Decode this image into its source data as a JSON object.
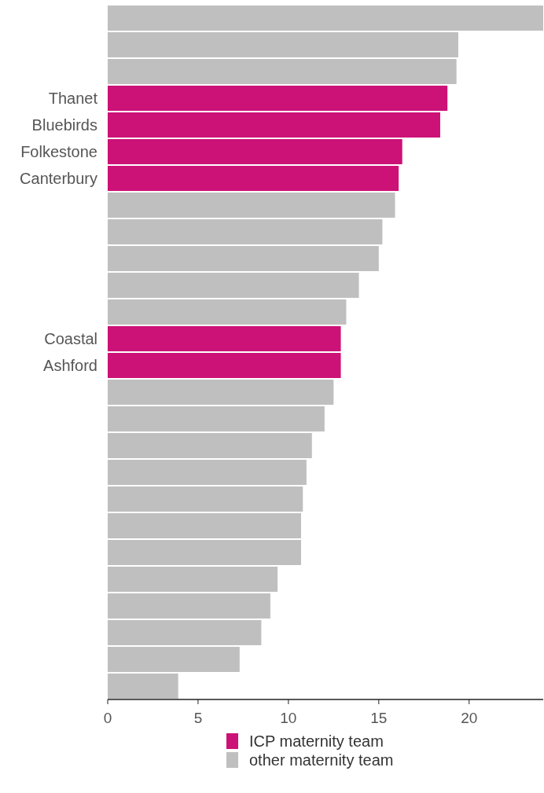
{
  "chart_data": {
    "type": "bar",
    "orientation": "horizontal",
    "categories": [
      null,
      null,
      null,
      "Thanet",
      "Bluebirds",
      "Folkestone",
      "Canterbury",
      null,
      null,
      null,
      null,
      null,
      "Coastal",
      "Ashford",
      null,
      null,
      null,
      null,
      null,
      null,
      null,
      null,
      null,
      null,
      null,
      null
    ],
    "series": [
      {
        "name": "ICP maternity team",
        "color": "#cc1177",
        "values": [
          null,
          null,
          null,
          18.8,
          18.4,
          16.3,
          16.1,
          null,
          null,
          null,
          null,
          null,
          12.9,
          12.9,
          null,
          null,
          null,
          null,
          null,
          null,
          null,
          null,
          null,
          null,
          null,
          null
        ]
      },
      {
        "name": "other maternity team",
        "color": "#bfbfbf",
        "values": [
          24.1,
          19.4,
          19.3,
          null,
          null,
          null,
          null,
          15.9,
          15.2,
          15.0,
          13.9,
          13.2,
          null,
          null,
          12.5,
          12.0,
          11.3,
          11.0,
          10.8,
          10.7,
          10.7,
          9.4,
          9.0,
          8.5,
          7.3,
          3.9
        ]
      }
    ],
    "xlim": [
      0,
      24.1
    ],
    "xticks": [
      0,
      5,
      10,
      15,
      20
    ],
    "grid": false,
    "legend": "bottom"
  }
}
